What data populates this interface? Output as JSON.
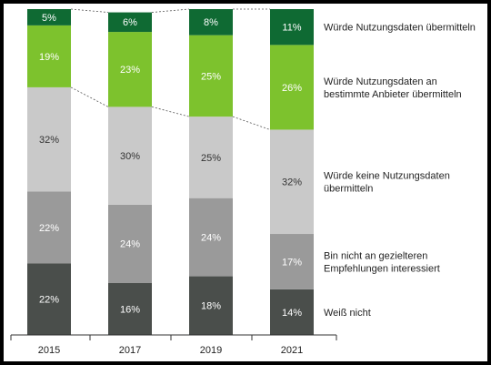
{
  "chart_data": {
    "type": "bar",
    "stacked": true,
    "percent_labels": true,
    "categories": [
      "2015",
      "2017",
      "2019",
      "2021"
    ],
    "series": [
      {
        "name": "Weiß nicht",
        "values": [
          22,
          16,
          18,
          14
        ],
        "color": "#4a4e4b"
      },
      {
        "name": "Bin nicht an gezielteren Empfehlungen interessiert",
        "values": [
          22,
          24,
          24,
          17
        ],
        "color": "#9a9a9a"
      },
      {
        "name": "Würde keine Nutzungsdaten übermitteln",
        "values": [
          32,
          30,
          25,
          32
        ],
        "color": "#c9c9c9"
      },
      {
        "name": "Würde Nutzungsdaten an bestimmte Anbieter übermitteln",
        "values": [
          19,
          23,
          25,
          26
        ],
        "color": "#7dc22d"
      },
      {
        "name": "Würde Nutzungsdaten übermitteln",
        "values": [
          5,
          6,
          8,
          11
        ],
        "color": "#0f6a33"
      }
    ],
    "ylim": [
      0,
      100
    ],
    "grid": false,
    "legend_position": "right",
    "xlabel": "",
    "ylabel": "",
    "title": ""
  }
}
